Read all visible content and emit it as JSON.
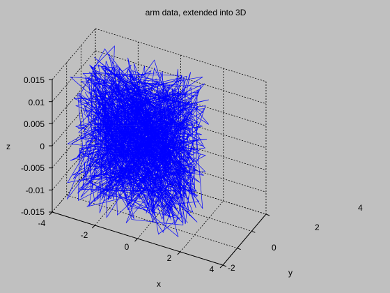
{
  "chart_data": {
    "type": "line",
    "title": "arm data, extended into 3D",
    "xlabel": "x",
    "ylabel": "y",
    "zlabel": "z",
    "xlim": [
      -4,
      4
    ],
    "ylim": [
      -2,
      4
    ],
    "zlim": [
      -0.015,
      0.015
    ],
    "grid": true,
    "series_color": "#0000ff",
    "xticks": [
      "-4",
      "-2",
      "0",
      "2",
      "4"
    ],
    "yticks": [
      "-2",
      "0",
      "2",
      "4"
    ],
    "zticks": [
      "-0.015",
      "-0.01",
      "-0.005",
      "0",
      "0.005",
      "0.01",
      "0.015"
    ],
    "series": [
      {
        "samples": 900,
        "x_range": [
          -3.5,
          1.8
        ],
        "y_range": [
          -1.5,
          3.2
        ],
        "z_range": [
          -0.015,
          0.015
        ]
      }
    ]
  }
}
